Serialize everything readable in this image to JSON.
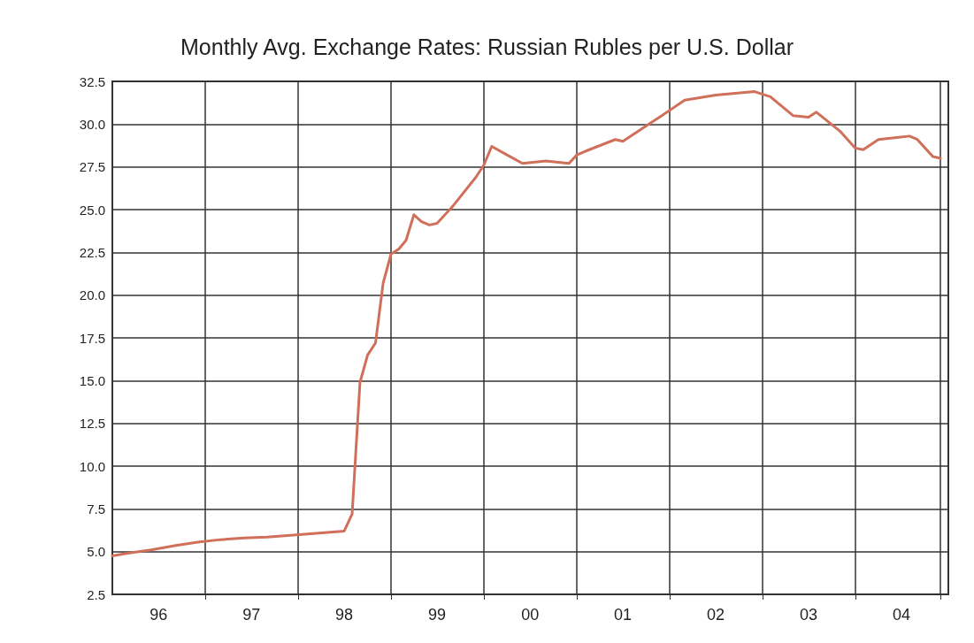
{
  "chart_data": {
    "type": "line",
    "title": "Monthly Avg. Exchange Rates: Russian Rubles per U.S. Dollar",
    "x": [
      "1996-01",
      "1996-03",
      "1996-06",
      "1996-09",
      "1996-12",
      "1997-03",
      "1997-06",
      "1997-09",
      "1997-12",
      "1998-03",
      "1998-07",
      "1998-08",
      "1998-09",
      "1998-10",
      "1998-11",
      "1998-12",
      "1999-01",
      "1999-02",
      "1999-03",
      "1999-04",
      "1999-05",
      "1999-06",
      "1999-07",
      "1999-09",
      "1999-12",
      "2000-01",
      "2000-02",
      "2000-04",
      "2000-06",
      "2000-09",
      "2000-12",
      "2001-01",
      "2001-02",
      "2001-06",
      "2001-07",
      "2001-10",
      "2001-12",
      "2002-03",
      "2002-07",
      "2002-12",
      "2003-02",
      "2003-05",
      "2003-07",
      "2003-08",
      "2003-11",
      "2004-01",
      "2004-02",
      "2004-04",
      "2004-08",
      "2004-09",
      "2004-11",
      "2004-12"
    ],
    "series": [
      {
        "color": "#d0705a",
        "values": [
          4.75,
          4.9,
          5.1,
          5.35,
          5.55,
          5.7,
          5.8,
          5.85,
          5.95,
          6.05,
          6.2,
          7.2,
          14.9,
          16.5,
          17.2,
          20.7,
          22.4,
          22.7,
          23.2,
          24.7,
          24.3,
          24.1,
          24.2,
          25.2,
          26.9,
          27.6,
          28.7,
          28.2,
          27.7,
          27.85,
          27.7,
          28.2,
          28.4,
          29.1,
          29.0,
          29.9,
          30.5,
          31.4,
          31.7,
          31.9,
          31.6,
          30.5,
          30.4,
          30.7,
          29.6,
          28.6,
          28.5,
          29.1,
          29.3,
          29.1,
          28.1,
          28.0
        ]
      }
    ],
    "xlim": [
      "1996-01",
      "2005-01"
    ],
    "xticks": [
      {
        "value": "1996-07",
        "label": "96"
      },
      {
        "value": "1997-07",
        "label": "97"
      },
      {
        "value": "1998-07",
        "label": "98"
      },
      {
        "value": "1999-07",
        "label": "99"
      },
      {
        "value": "2000-07",
        "label": "00"
      },
      {
        "value": "2001-07",
        "label": "01"
      },
      {
        "value": "2002-07",
        "label": "02"
      },
      {
        "value": "2003-07",
        "label": "03"
      },
      {
        "value": "2004-07",
        "label": "04"
      },
      {
        "value": "1997-01",
        "label": null
      },
      {
        "value": "1998-01",
        "label": null
      },
      {
        "value": "1999-01",
        "label": null
      },
      {
        "value": "2000-01",
        "label": null
      },
      {
        "value": "2001-01",
        "label": null
      },
      {
        "value": "2002-01",
        "label": null
      },
      {
        "value": "2003-01",
        "label": null
      },
      {
        "value": "2004-01",
        "label": null
      },
      {
        "value": "2004-12",
        "label": null
      }
    ],
    "ylim": [
      2.5,
      32.5
    ],
    "yticks": [
      2.5,
      {
        "value": 5,
        "label": "5.0"
      },
      7.5,
      {
        "value": 10,
        "label": "10.0"
      },
      12.5,
      {
        "value": 15,
        "label": "15.0"
      },
      17.5,
      {
        "value": 20,
        "label": "20.0"
      },
      22.5,
      {
        "value": 25,
        "label": "25.0"
      },
      27.5,
      {
        "value": 30,
        "label": "30.0"
      },
      32.5
    ],
    "grid": true,
    "marker": "none",
    "line_style": "solid"
  }
}
